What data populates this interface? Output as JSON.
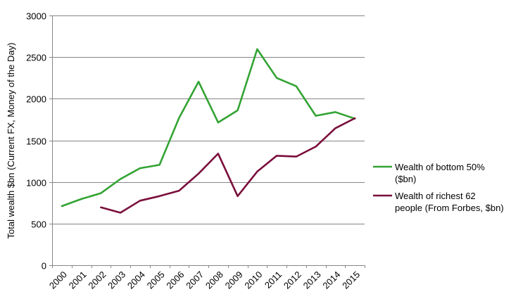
{
  "chart_data": {
    "type": "line",
    "title": "",
    "xlabel": "",
    "ylabel": "Total wealth $bn (Current FX, Money of the Day)",
    "categories": [
      "2000",
      "2001",
      "2002",
      "2003",
      "2004",
      "2005",
      "2006",
      "2007",
      "2008",
      "2009",
      "2010",
      "2011",
      "2012",
      "2013",
      "2014",
      "2015"
    ],
    "ylim": [
      0,
      3000
    ],
    "yticks": [
      0,
      500,
      1000,
      1500,
      2000,
      2500,
      3000
    ],
    "grid": "horizontal",
    "legend_position": "right",
    "series": [
      {
        "name": "Wealth of bottom 50% ($bn)",
        "legend_lines": [
          "Wealth of bottom 50%",
          "($bn)"
        ],
        "color": "#33a333",
        "values": [
          710,
          795,
          865,
          1035,
          1165,
          1205,
          1770,
          2205,
          1715,
          1860,
          2595,
          2250,
          2150,
          1795,
          1840,
          1760
        ]
      },
      {
        "name": "Wealth of richest 62 people (From Forbes, $bn)",
        "legend_lines": [
          "Wealth of richest 62",
          "people (From Forbes, $bn)"
        ],
        "color": "#7a0e3c",
        "values": [
          null,
          null,
          695,
          630,
          775,
          830,
          895,
          1100,
          1340,
          830,
          1125,
          1315,
          1305,
          1425,
          1645,
          1765
        ]
      }
    ]
  }
}
